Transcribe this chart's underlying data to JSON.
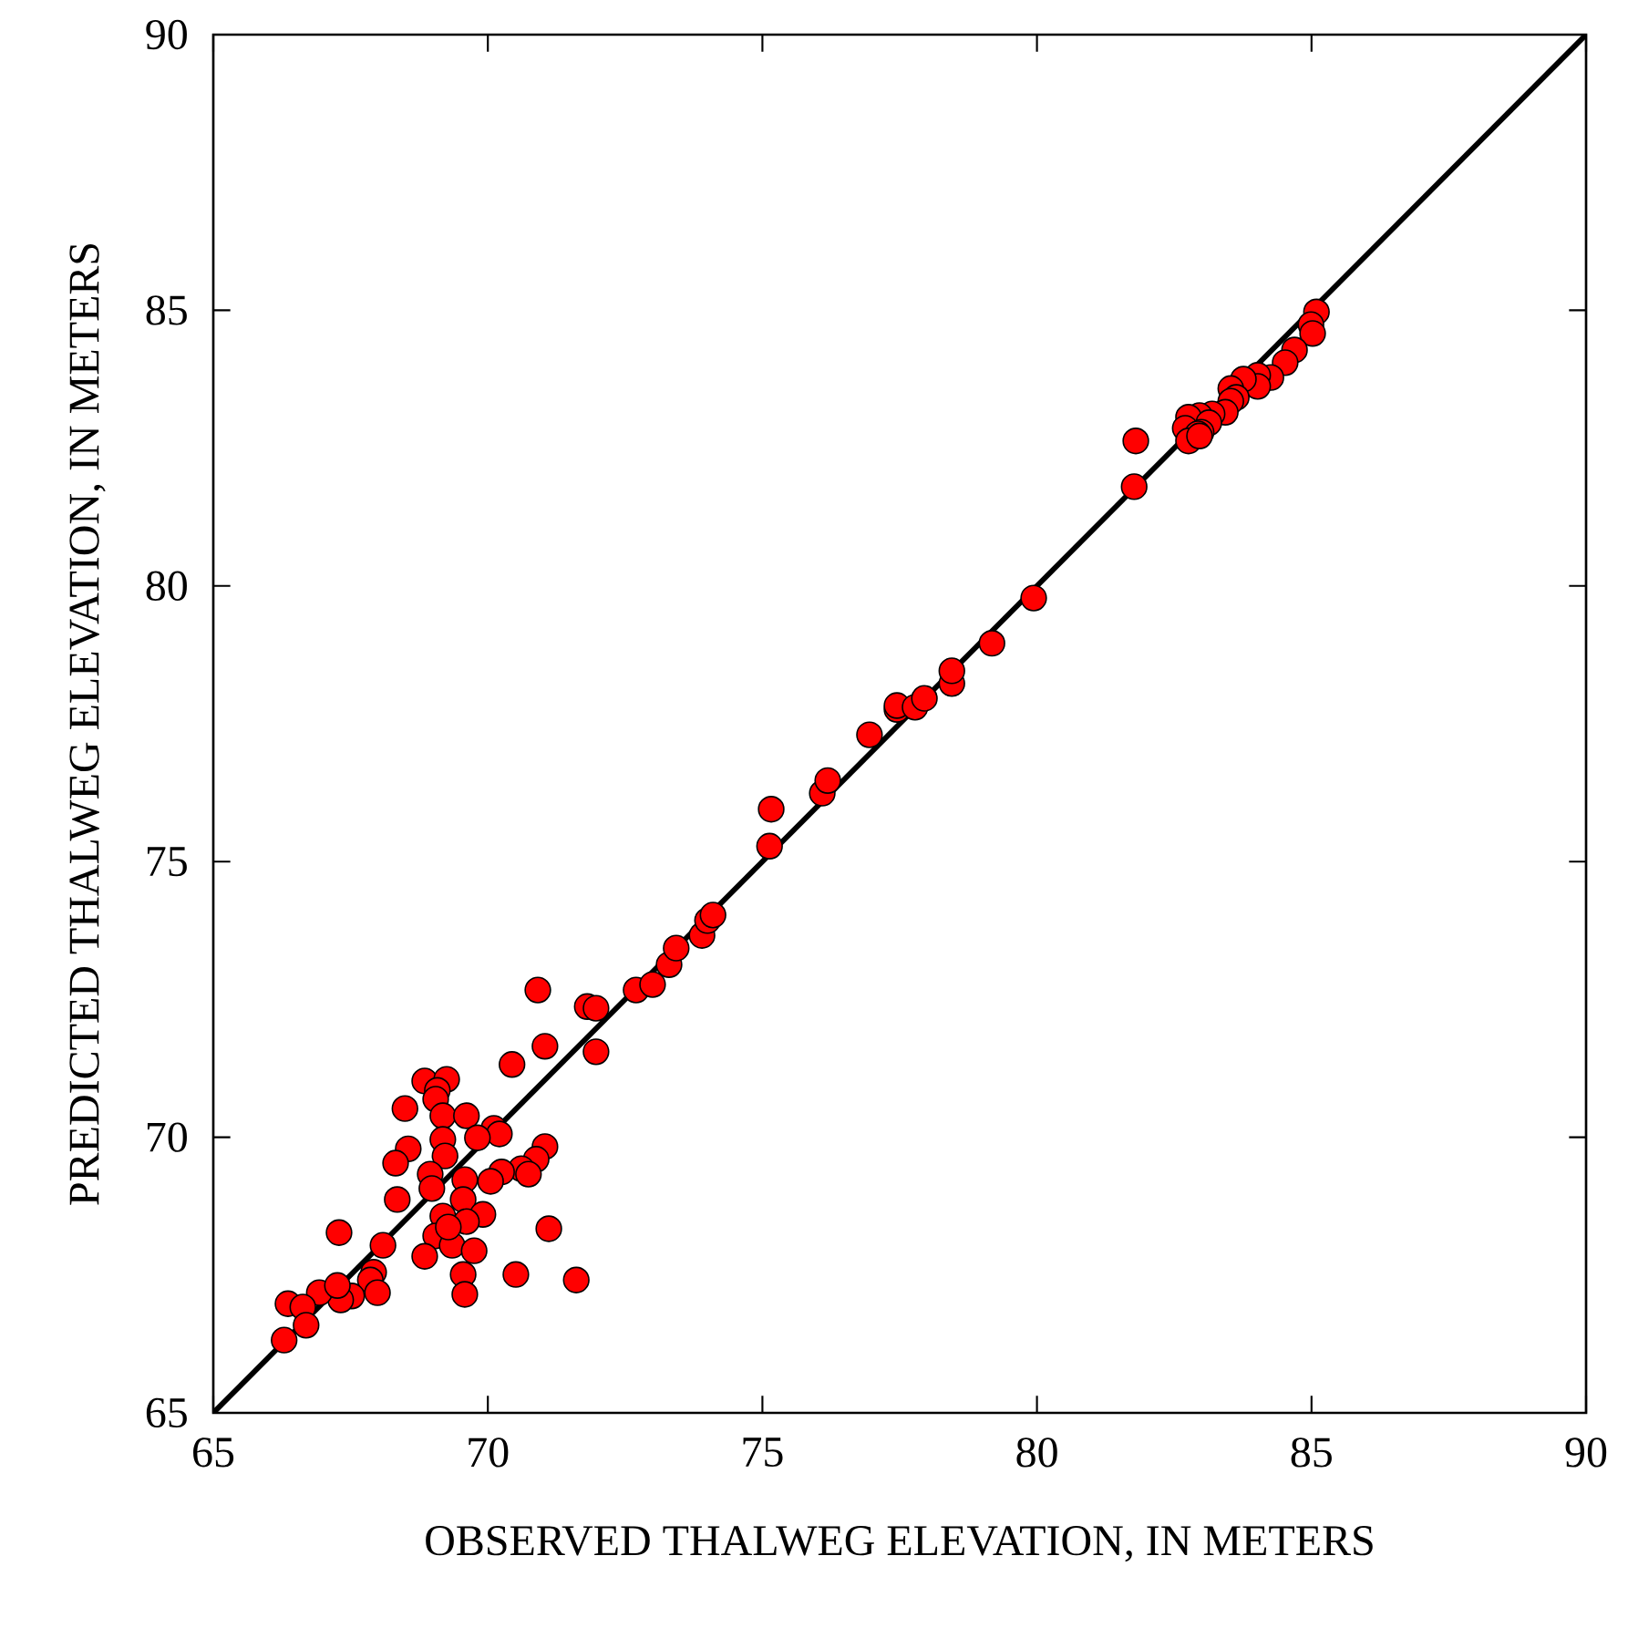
{
  "chart_data": {
    "type": "scatter",
    "xlabel": "OBSERVED THALWEG ELEVATION, IN METERS",
    "ylabel": "PREDICTED THALWEG ELEVATION, IN METERS",
    "xlim": [
      65,
      90
    ],
    "ylim": [
      65,
      90
    ],
    "xticks": [
      65,
      70,
      75,
      80,
      85,
      90
    ],
    "yticks": [
      65,
      70,
      75,
      80,
      85,
      90
    ],
    "series": [
      {
        "type": "line",
        "color": "#000000",
        "marker": "none",
        "line_style": "solid",
        "x": [
          65,
          90
        ],
        "values": [
          65,
          90
        ]
      },
      {
        "color": "#ff0000",
        "marker": "circle",
        "x": [
          70.91,
          71.81,
          71.97,
          72.7,
          73.0,
          71.04,
          70.44,
          71.97,
          68.85,
          69.25,
          69.08,
          69.05,
          68.49,
          69.18,
          69.61,
          70.11,
          70.21,
          69.81,
          69.18,
          69.22,
          68.55,
          68.32,
          71.04,
          70.88,
          70.61,
          70.74,
          70.25,
          70.05,
          68.95,
          68.98,
          69.58,
          69.55,
          68.35,
          69.91,
          69.18,
          69.61,
          69.05,
          69.35,
          69.28,
          69.75,
          68.85,
          67.29,
          68.09,
          71.11,
          67.92,
          67.86,
          67.99,
          69.55,
          69.58,
          70.51,
          71.61,
          67.52,
          67.32,
          66.93,
          67.26,
          66.36,
          66.63,
          66.69,
          66.29,
          73.3,
          73.43,
          73.9,
          74.0,
          74.1,
          75.13,
          75.16,
          76.09,
          76.19,
          76.95,
          77.45,
          77.45,
          77.78,
          77.95,
          78.45,
          78.45,
          79.18,
          79.94,
          81.8,
          81.77,
          85.09,
          84.99,
          85.02,
          84.69,
          84.52,
          84.26,
          84.02,
          84.02,
          83.76,
          83.53,
          83.63,
          83.53,
          83.43,
          83.19,
          82.96,
          82.76,
          83.13,
          82.7,
          82.99,
          82.93,
          82.76,
          82.96
        ],
        "values": [
          72.67,
          72.37,
          72.34,
          72.67,
          72.77,
          71.65,
          71.32,
          71.55,
          71.02,
          71.05,
          70.85,
          70.69,
          70.52,
          70.39,
          70.39,
          70.16,
          70.06,
          69.99,
          69.96,
          69.66,
          69.79,
          69.53,
          69.83,
          69.6,
          69.43,
          69.33,
          69.37,
          69.2,
          69.33,
          69.07,
          69.23,
          68.87,
          68.87,
          68.6,
          68.57,
          68.47,
          68.21,
          68.04,
          68.37,
          67.94,
          67.84,
          68.27,
          68.04,
          68.34,
          67.55,
          67.41,
          67.18,
          67.51,
          67.15,
          67.51,
          67.41,
          67.12,
          67.05,
          67.18,
          67.31,
          66.98,
          66.92,
          66.59,
          66.32,
          73.13,
          73.43,
          73.66,
          73.93,
          74.03,
          75.28,
          75.95,
          76.24,
          76.47,
          77.3,
          77.76,
          77.83,
          77.8,
          77.96,
          78.23,
          78.46,
          78.96,
          79.78,
          82.63,
          81.8,
          84.97,
          84.74,
          84.58,
          84.28,
          84.05,
          83.78,
          83.82,
          83.62,
          83.75,
          83.58,
          83.42,
          83.35,
          83.15,
          83.12,
          83.09,
          83.06,
          82.96,
          82.86,
          82.79,
          82.76,
          82.63,
          82.72
        ]
      }
    ]
  }
}
